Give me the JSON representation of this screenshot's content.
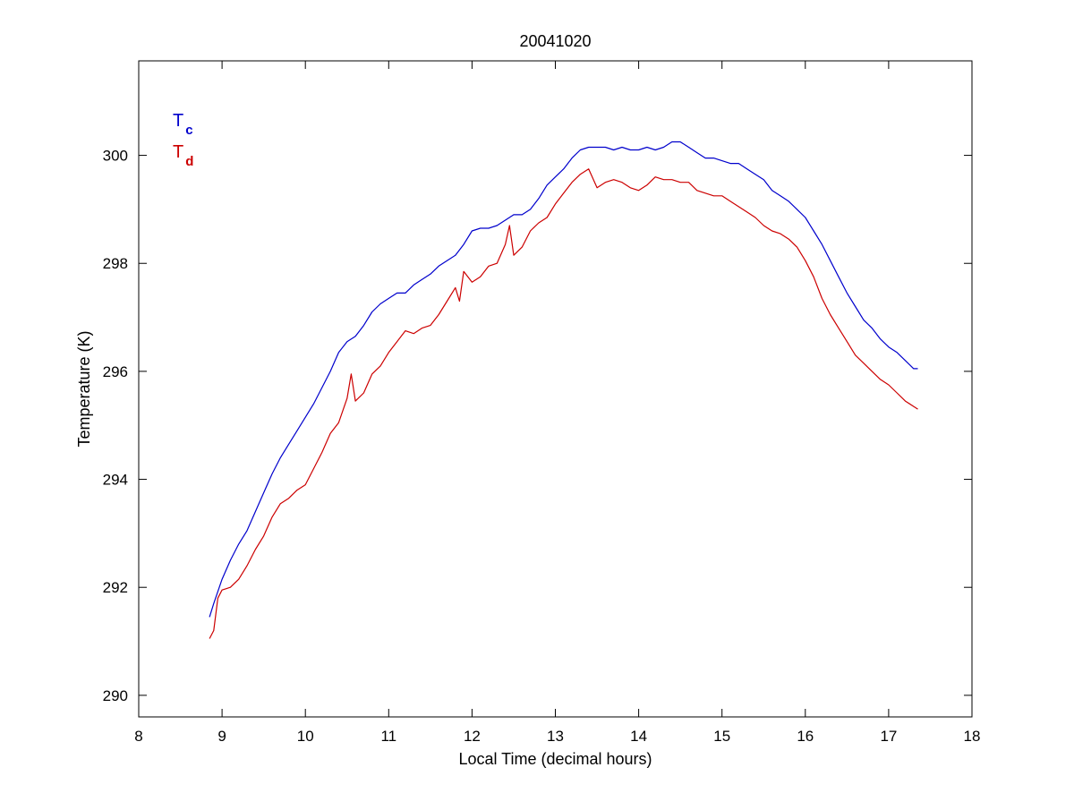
{
  "chart_data": {
    "type": "line",
    "title": "20041020",
    "xlabel": "Local Time (decimal hours)",
    "ylabel": "Temperature (K)",
    "xlim": [
      8,
      18
    ],
    "ylim": [
      289.6,
      301.75
    ],
    "xticks": [
      8,
      9,
      10,
      11,
      12,
      13,
      14,
      15,
      16,
      17,
      18
    ],
    "yticks": [
      290,
      292,
      294,
      296,
      298,
      300
    ],
    "grid": false,
    "legend": {
      "placement": "top-left",
      "entries": [
        {
          "base": "T",
          "sub": "c",
          "color": "#0000CC"
        },
        {
          "base": "T",
          "sub": "d",
          "color": "#CC0000"
        }
      ]
    },
    "series": [
      {
        "color": "#0000CC",
        "x": [
          8.85,
          8.9,
          9.0,
          9.1,
          9.2,
          9.3,
          9.4,
          9.5,
          9.6,
          9.7,
          9.8,
          9.9,
          10.0,
          10.1,
          10.2,
          10.3,
          10.4,
          10.5,
          10.6,
          10.7,
          10.8,
          10.9,
          11.0,
          11.1,
          11.2,
          11.3,
          11.4,
          11.5,
          11.6,
          11.7,
          11.8,
          11.9,
          12.0,
          12.1,
          12.2,
          12.3,
          12.4,
          12.5,
          12.6,
          12.7,
          12.8,
          12.9,
          13.0,
          13.1,
          13.2,
          13.3,
          13.4,
          13.5,
          13.6,
          13.7,
          13.8,
          13.9,
          14.0,
          14.1,
          14.2,
          14.3,
          14.4,
          14.5,
          14.6,
          14.7,
          14.8,
          14.9,
          15.0,
          15.1,
          15.2,
          15.3,
          15.4,
          15.5,
          15.6,
          15.7,
          15.8,
          15.9,
          16.0,
          16.1,
          16.2,
          16.3,
          16.4,
          16.5,
          16.6,
          16.7,
          16.8,
          16.9,
          17.0,
          17.1,
          17.2,
          17.3,
          17.35
        ],
        "y": [
          291.45,
          291.7,
          292.15,
          292.5,
          292.8,
          293.05,
          293.4,
          293.75,
          294.1,
          294.4,
          294.65,
          294.9,
          295.15,
          295.4,
          295.7,
          296.0,
          296.35,
          296.55,
          296.65,
          296.85,
          297.1,
          297.25,
          297.35,
          297.45,
          297.45,
          297.6,
          297.7,
          297.8,
          297.95,
          298.05,
          298.15,
          298.35,
          298.6,
          298.65,
          298.65,
          298.7,
          298.8,
          298.9,
          298.9,
          299.0,
          299.2,
          299.45,
          299.6,
          299.75,
          299.95,
          300.1,
          300.15,
          300.15,
          300.15,
          300.1,
          300.15,
          300.1,
          300.1,
          300.15,
          300.1,
          300.15,
          300.25,
          300.25,
          300.15,
          300.05,
          299.95,
          299.95,
          299.9,
          299.85,
          299.85,
          299.75,
          299.65,
          299.55,
          299.35,
          299.25,
          299.15,
          299.0,
          298.85,
          298.6,
          298.35,
          298.05,
          297.75,
          297.45,
          297.2,
          296.95,
          296.8,
          296.6,
          296.45,
          296.35,
          296.2,
          296.05,
          296.05
        ]
      },
      {
        "color": "#CC0000",
        "x": [
          8.85,
          8.9,
          8.95,
          9.0,
          9.1,
          9.2,
          9.3,
          9.4,
          9.5,
          9.6,
          9.7,
          9.8,
          9.9,
          10.0,
          10.1,
          10.2,
          10.3,
          10.4,
          10.5,
          10.55,
          10.6,
          10.7,
          10.8,
          10.9,
          11.0,
          11.1,
          11.2,
          11.3,
          11.4,
          11.5,
          11.6,
          11.7,
          11.8,
          11.85,
          11.9,
          12.0,
          12.1,
          12.2,
          12.3,
          12.4,
          12.45,
          12.5,
          12.6,
          12.7,
          12.8,
          12.9,
          13.0,
          13.1,
          13.2,
          13.3,
          13.4,
          13.5,
          13.6,
          13.7,
          13.8,
          13.9,
          14.0,
          14.1,
          14.2,
          14.3,
          14.4,
          14.5,
          14.6,
          14.7,
          14.8,
          14.9,
          15.0,
          15.1,
          15.2,
          15.3,
          15.4,
          15.5,
          15.6,
          15.7,
          15.8,
          15.9,
          16.0,
          16.1,
          16.2,
          16.3,
          16.4,
          16.5,
          16.6,
          16.7,
          16.8,
          16.9,
          17.0,
          17.1,
          17.2,
          17.3,
          17.35
        ],
        "y": [
          291.05,
          291.2,
          291.8,
          291.95,
          292.0,
          292.15,
          292.4,
          292.7,
          292.95,
          293.3,
          293.55,
          293.65,
          293.8,
          293.9,
          294.2,
          294.5,
          294.85,
          295.05,
          295.5,
          295.95,
          295.45,
          295.6,
          295.95,
          296.1,
          296.35,
          296.55,
          296.75,
          296.7,
          296.8,
          296.85,
          297.05,
          297.3,
          297.55,
          297.3,
          297.85,
          297.65,
          297.75,
          297.95,
          298.0,
          298.35,
          298.7,
          298.15,
          298.3,
          298.6,
          298.75,
          298.85,
          299.1,
          299.3,
          299.5,
          299.65,
          299.75,
          299.4,
          299.5,
          299.55,
          299.5,
          299.4,
          299.35,
          299.45,
          299.6,
          299.55,
          299.55,
          299.5,
          299.5,
          299.35,
          299.3,
          299.25,
          299.25,
          299.15,
          299.05,
          298.95,
          298.85,
          298.7,
          298.6,
          298.55,
          298.45,
          298.3,
          298.05,
          297.75,
          297.35,
          297.05,
          296.8,
          296.55,
          296.3,
          296.15,
          296.0,
          295.85,
          295.75,
          295.6,
          295.45,
          295.35,
          295.3
        ]
      }
    ]
  }
}
